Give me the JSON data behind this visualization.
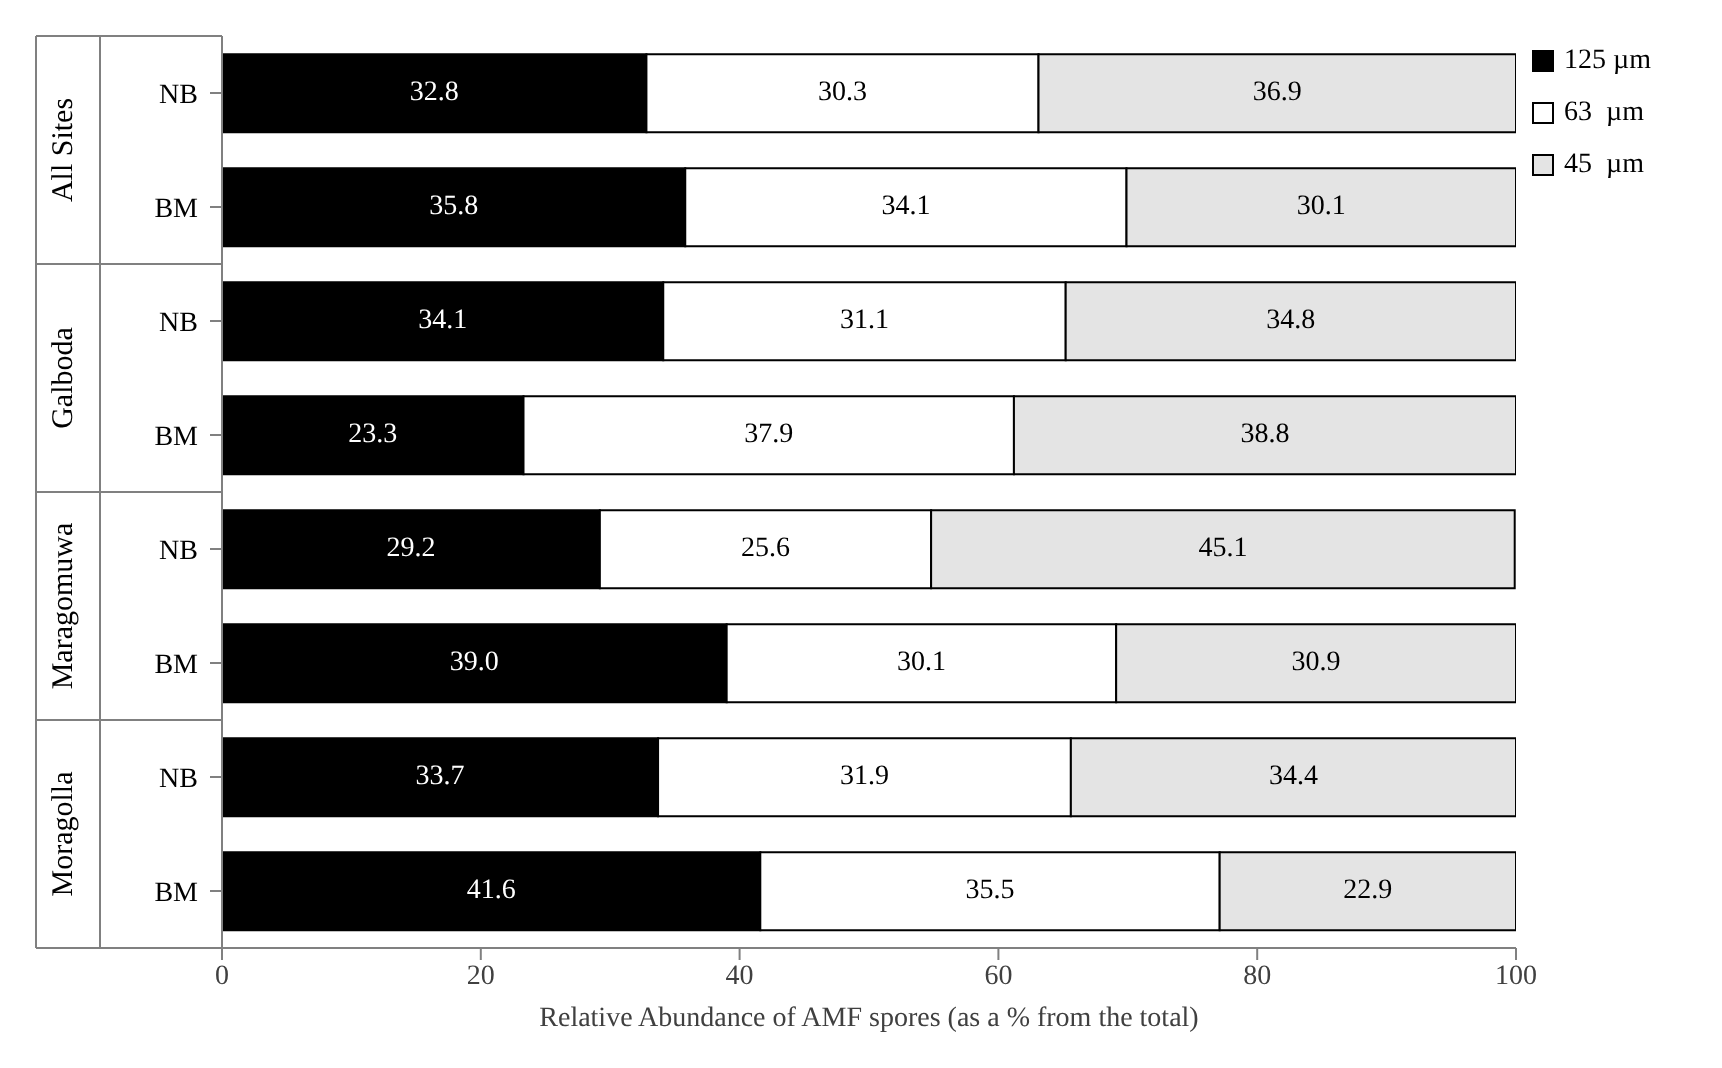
{
  "chart_data": {
    "type": "bar",
    "orientation": "horizontal",
    "stacked": true,
    "xlabel": "Relative Abundance of AMF spores (as a % from the total)",
    "categories": [
      "NB",
      "BM",
      "NB",
      "BM",
      "NB",
      "BM",
      "NB",
      "BM"
    ],
    "annotations": [
      "All Sites",
      "Galboda",
      "Maragomuwa",
      "Moragolla"
    ],
    "series": [
      {
        "name": "125 µm",
        "color": "#000000",
        "values": [
          32.8,
          35.8,
          34.1,
          23.3,
          29.2,
          39.0,
          33.7,
          41.6
        ],
        "value_labels": [
          "32.8",
          "35.8",
          "34.1",
          "23.3",
          "29.2",
          "39.0",
          "33.7",
          "41.6"
        ]
      },
      {
        "name": "63  µm",
        "color": "#ffffff",
        "values": [
          30.3,
          34.1,
          31.1,
          37.9,
          25.6,
          30.1,
          31.9,
          35.5
        ],
        "value_labels": [
          "30.3",
          "34.1",
          "31.1",
          "37.9",
          "25.6",
          "30.1",
          "31.9",
          "35.5"
        ]
      },
      {
        "name": "45  µm",
        "color": "#e4e4e4",
        "values": [
          36.9,
          30.1,
          34.8,
          38.8,
          45.1,
          30.9,
          34.4,
          22.9
        ],
        "value_labels": [
          "36.9",
          "30.1",
          "34.8",
          "38.8",
          "45.1",
          "30.9",
          "34.4",
          "22.9"
        ]
      }
    ],
    "xlim": [
      0,
      100
    ],
    "xticks": [
      0,
      20,
      40,
      60,
      80,
      100
    ],
    "grid": false,
    "legend": "top right"
  }
}
